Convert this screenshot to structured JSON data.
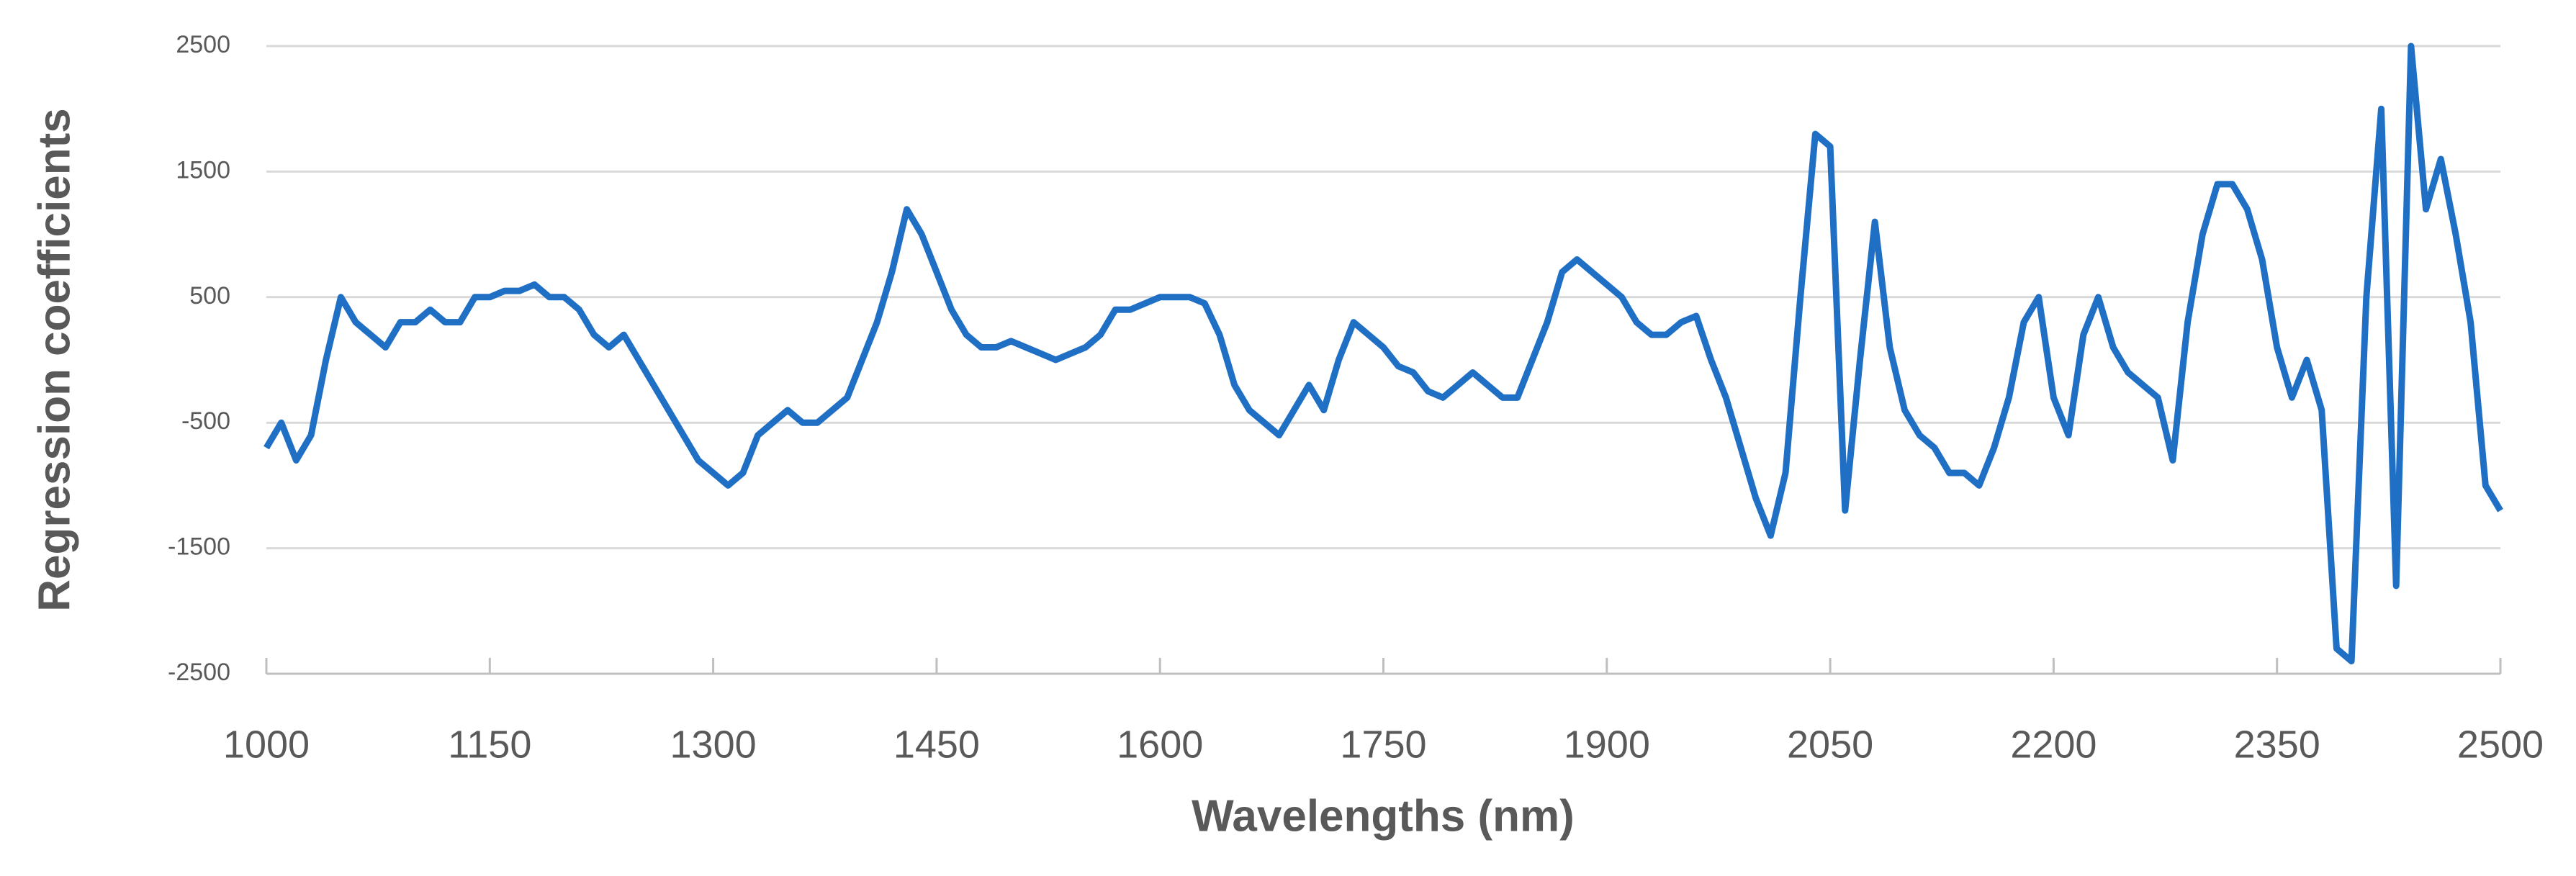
{
  "chart_data": {
    "type": "line",
    "xlabel": "Wavelengths (nm)",
    "ylabel": "Regression coefficients",
    "x": [
      1000,
      1010,
      1020,
      1030,
      1040,
      1050,
      1060,
      1070,
      1080,
      1090,
      1100,
      1110,
      1120,
      1130,
      1140,
      1150,
      1160,
      1170,
      1180,
      1190,
      1200,
      1210,
      1220,
      1230,
      1240,
      1250,
      1260,
      1270,
      1280,
      1290,
      1300,
      1310,
      1320,
      1330,
      1340,
      1350,
      1360,
      1370,
      1380,
      1390,
      1400,
      1410,
      1420,
      1430,
      1440,
      1450,
      1460,
      1470,
      1480,
      1490,
      1500,
      1510,
      1520,
      1530,
      1540,
      1550,
      1560,
      1570,
      1580,
      1590,
      1600,
      1610,
      1620,
      1630,
      1640,
      1650,
      1660,
      1670,
      1680,
      1690,
      1700,
      1710,
      1720,
      1730,
      1740,
      1750,
      1760,
      1770,
      1780,
      1790,
      1800,
      1810,
      1820,
      1830,
      1840,
      1850,
      1860,
      1870,
      1880,
      1890,
      1900,
      1910,
      1920,
      1930,
      1940,
      1950,
      1960,
      1970,
      1980,
      1990,
      2000,
      2010,
      2020,
      2030,
      2040,
      2050,
      2060,
      2070,
      2080,
      2090,
      2100,
      2110,
      2120,
      2130,
      2140,
      2150,
      2160,
      2170,
      2180,
      2190,
      2200,
      2210,
      2220,
      2230,
      2240,
      2250,
      2260,
      2270,
      2280,
      2290,
      2300,
      2310,
      2320,
      2330,
      2340,
      2350,
      2360,
      2370,
      2380,
      2390,
      2400,
      2410,
      2420,
      2430,
      2440,
      2450,
      2460,
      2470,
      2480,
      2490,
      2500
    ],
    "series": [
      {
        "name": "Regression coefficients",
        "color": "#1f6fc5",
        "values": [
          -700,
          -500,
          -800,
          -600,
          0,
          500,
          300,
          200,
          100,
          300,
          300,
          400,
          300,
          300,
          500,
          500,
          550,
          550,
          600,
          500,
          500,
          400,
          200,
          100,
          200,
          0,
          -200,
          -400,
          -600,
          -800,
          -900,
          -1000,
          -900,
          -600,
          -500,
          -400,
          -500,
          -500,
          -400,
          -300,
          0,
          300,
          700,
          1200,
          1000,
          700,
          400,
          200,
          100,
          100,
          150,
          100,
          50,
          0,
          50,
          100,
          200,
          400,
          400,
          450,
          500,
          500,
          500,
          450,
          200,
          -200,
          -400,
          -500,
          -600,
          -400,
          -200,
          -400,
          0,
          300,
          200,
          100,
          -50,
          -100,
          -250,
          -300,
          -200,
          -100,
          -200,
          -300,
          -300,
          0,
          300,
          700,
          800,
          700,
          600,
          500,
          300,
          200,
          200,
          300,
          350,
          0,
          -300,
          -700,
          -1100,
          -1400,
          -900,
          500,
          1800,
          1700,
          -1200,
          0,
          1100,
          100,
          -400,
          -600,
          -700,
          -900,
          -900,
          -1000,
          -700,
          -300,
          300,
          500,
          -300,
          -600,
          200,
          500,
          100,
          -100,
          -200,
          -300,
          -800,
          300,
          1000,
          1400,
          1400,
          1200,
          800,
          100,
          -300,
          0,
          -400,
          -2300,
          -2400,
          500,
          2000,
          -1800,
          2500,
          1200,
          1600,
          1000,
          300,
          -1000,
          -1200
        ]
      }
    ],
    "xlim": [
      1000,
      2500
    ],
    "xticks": [
      1000,
      1150,
      1300,
      1450,
      1600,
      1750,
      1900,
      2050,
      2200,
      2350,
      2500
    ],
    "ylim": [
      -2500,
      2500
    ],
    "yticks": [
      -2500,
      -1500,
      -500,
      500,
      1500,
      2500
    ],
    "grid": true
  }
}
